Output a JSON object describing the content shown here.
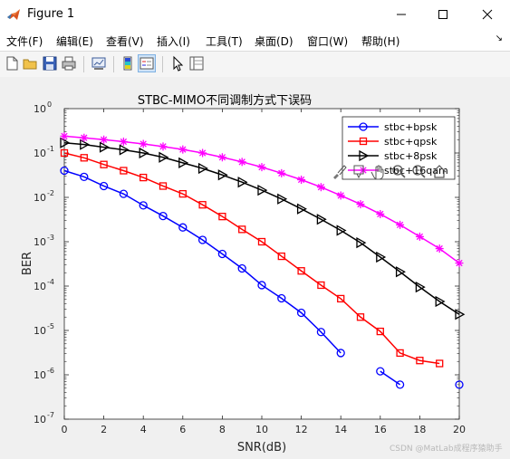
{
  "window": {
    "title": "Figure 1"
  },
  "menu": [
    "文件(F)",
    "编辑(E)",
    "查看(V)",
    "插入(I)",
    "工具(T)",
    "桌面(D)",
    "窗口(W)",
    "帮助(H)"
  ],
  "toolbar": {
    "icons": [
      "new-figure-icon",
      "open-file-icon",
      "save-icon",
      "print-icon",
      "link-plot-icon",
      "colorbar-icon",
      "legend-icon",
      "pointer-icon",
      "property-inspector-icon"
    ]
  },
  "axes_toolbar": {
    "icons": [
      "brush-icon",
      "data-tip-icon",
      "pan-icon",
      "zoom-in-icon",
      "zoom-out-icon",
      "home-icon"
    ]
  },
  "watermark": "CSDN @MatLab成程序猿助手",
  "chart_data": {
    "type": "line",
    "title": "STBC-MIMO不同调制方式下误码",
    "xlabel": "SNR(dB)",
    "ylabel": "BER",
    "xlim": [
      0,
      20
    ],
    "ylim": [
      1e-07,
      1
    ],
    "yscale": "log",
    "xticks": [
      0,
      2,
      4,
      6,
      8,
      10,
      12,
      14,
      16,
      18,
      20
    ],
    "yticks": [
      {
        "base": "10",
        "exp": "-7"
      },
      {
        "base": "10",
        "exp": "-6"
      },
      {
        "base": "10",
        "exp": "-5"
      },
      {
        "base": "10",
        "exp": "-4"
      },
      {
        "base": "10",
        "exp": "-3"
      },
      {
        "base": "10",
        "exp": "-2"
      },
      {
        "base": "10",
        "exp": "-1"
      },
      {
        "base": "10",
        "exp": "0"
      }
    ],
    "grid": false,
    "legend_position": "top-right",
    "series": [
      {
        "name": "stbc+bpsk",
        "color": "#0000ff",
        "marker": "circle",
        "x": [
          0,
          1,
          2,
          3,
          4,
          5,
          6,
          7,
          8,
          9,
          10,
          11,
          12,
          13,
          14,
          15,
          16,
          17,
          18,
          19,
          20
        ],
        "y": [
          0.04,
          0.029,
          0.018,
          0.012,
          0.0066,
          0.0038,
          0.0021,
          0.0011,
          0.00053,
          0.00025,
          0.000105,
          5.3e-05,
          2.5e-05,
          9.2e-06,
          3.1e-06,
          null,
          1.2e-06,
          6e-07,
          null,
          null,
          6e-07
        ]
      },
      {
        "name": "stbc+qpsk",
        "color": "#ff0000",
        "marker": "square",
        "x": [
          0,
          1,
          2,
          3,
          4,
          5,
          6,
          7,
          8,
          9,
          10,
          11,
          12,
          13,
          14,
          15,
          16,
          17,
          18,
          19
        ],
        "y": [
          0.1,
          0.078,
          0.055,
          0.04,
          0.028,
          0.018,
          0.012,
          0.0068,
          0.0037,
          0.0019,
          0.001,
          0.00047,
          0.00022,
          0.000105,
          5.2e-05,
          2e-05,
          9.5e-06,
          3.1e-06,
          2.1e-06,
          1.8e-06
        ]
      },
      {
        "name": "stbc+8psk",
        "color": "#000000",
        "marker": "triangle-right",
        "x": [
          0,
          1,
          2,
          3,
          4,
          5,
          6,
          7,
          8,
          9,
          10,
          11,
          12,
          13,
          14,
          15,
          16,
          17,
          18,
          19,
          20
        ],
        "y": [
          0.17,
          0.155,
          0.135,
          0.118,
          0.1,
          0.08,
          0.06,
          0.045,
          0.032,
          0.022,
          0.0145,
          0.0092,
          0.0055,
          0.0032,
          0.0018,
          0.00095,
          0.00045,
          0.00021,
          9.5e-05,
          4.5e-05,
          2.3e-05
        ]
      },
      {
        "name": "stbc+16qam",
        "color": "#ff00ff",
        "marker": "star",
        "x": [
          0,
          1,
          2,
          3,
          4,
          5,
          6,
          7,
          8,
          9,
          10,
          11,
          12,
          13,
          14,
          15,
          16,
          17,
          18,
          19,
          20
        ],
        "y": [
          0.24,
          0.22,
          0.2,
          0.18,
          0.16,
          0.14,
          0.12,
          0.1,
          0.08,
          0.063,
          0.048,
          0.035,
          0.025,
          0.017,
          0.011,
          0.007,
          0.0042,
          0.0024,
          0.0013,
          0.0007,
          0.00033
        ]
      }
    ]
  }
}
